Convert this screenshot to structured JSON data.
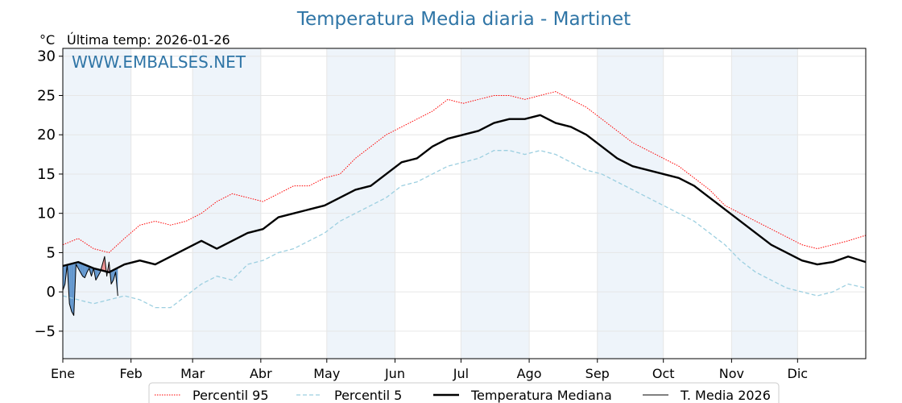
{
  "header": {
    "title": "Temperatura Media diaria - Martinet",
    "unit": "°C",
    "last_temp": "Última temp: 2026-01-26",
    "watermark": "WWW.EMBALSES.NET"
  },
  "chart_data": {
    "type": "line",
    "title": "Temperatura Media diaria - Martinet",
    "ylabel": "°C",
    "ylim": [
      -8.5,
      31
    ],
    "yticks": [
      30,
      25,
      20,
      15,
      10,
      5,
      0,
      -5
    ],
    "ytick_labels": [
      "30",
      "25",
      "20",
      "15",
      "10",
      "5",
      "0",
      "−5"
    ],
    "xlim": [
      1,
      366
    ],
    "months": [
      "Ene",
      "Feb",
      "Mar",
      "Abr",
      "May",
      "Jun",
      "Jul",
      "Ago",
      "Sep",
      "Oct",
      "Nov",
      "Dic"
    ],
    "month_start_day": [
      1,
      32,
      60,
      91,
      121,
      152,
      182,
      213,
      244,
      274,
      305,
      335
    ],
    "shaded_months": [
      "Ene",
      "Mar",
      "May",
      "Jul",
      "Sep",
      "Nov"
    ],
    "grid": true,
    "legend_position": "bottom",
    "colors": {
      "p95": "#ff0000",
      "p5": "#9ccfe0",
      "mediana": "#000000",
      "media2026": "#000000",
      "fill_below": "#4a86c5",
      "fill_above": "#f08080",
      "band": "#eef4fa"
    },
    "series": [
      {
        "name": "Percentil 95",
        "style": "dotted",
        "x": [
          1,
          8,
          15,
          22,
          29,
          36,
          43,
          50,
          57,
          64,
          71,
          78,
          85,
          92,
          99,
          106,
          113,
          120,
          127,
          134,
          141,
          148,
          155,
          162,
          169,
          176,
          183,
          190,
          197,
          204,
          211,
          218,
          225,
          232,
          239,
          246,
          253,
          260,
          267,
          274,
          281,
          288,
          295,
          302,
          309,
          316,
          323,
          330,
          337,
          344,
          351,
          358,
          366
        ],
        "values": [
          6.0,
          6.8,
          5.5,
          5.0,
          6.8,
          8.5,
          9.0,
          8.5,
          9.0,
          10.0,
          11.5,
          12.5,
          12.0,
          11.5,
          12.5,
          13.5,
          13.5,
          14.5,
          15.0,
          17.0,
          18.5,
          20.0,
          21.0,
          22.0,
          23.0,
          24.5,
          24.0,
          24.5,
          25.0,
          25.0,
          24.5,
          25.0,
          25.5,
          24.5,
          23.5,
          22.0,
          20.5,
          19.0,
          18.0,
          17.0,
          16.0,
          14.5,
          13.0,
          11.0,
          10.0,
          9.0,
          8.0,
          7.0,
          6.0,
          5.5,
          6.0,
          6.5,
          7.2
        ]
      },
      {
        "name": "Percentil 5",
        "style": "dashed",
        "x": [
          1,
          8,
          15,
          22,
          29,
          36,
          43,
          50,
          57,
          64,
          71,
          78,
          85,
          92,
          99,
          106,
          113,
          120,
          127,
          134,
          141,
          148,
          155,
          162,
          169,
          176,
          183,
          190,
          197,
          204,
          211,
          218,
          225,
          232,
          239,
          246,
          253,
          260,
          267,
          274,
          281,
          288,
          295,
          302,
          309,
          316,
          323,
          330,
          337,
          344,
          351,
          358,
          366
        ],
        "values": [
          -0.5,
          -1.0,
          -1.5,
          -1.0,
          -0.5,
          -1.0,
          -2.0,
          -2.0,
          -0.5,
          1.0,
          2.0,
          1.5,
          3.5,
          4.0,
          5.0,
          5.5,
          6.5,
          7.5,
          9.0,
          10.0,
          11.0,
          12.0,
          13.5,
          14.0,
          15.0,
          16.0,
          16.5,
          17.0,
          18.0,
          18.0,
          17.5,
          18.0,
          17.5,
          16.5,
          15.5,
          15.0,
          14.0,
          13.0,
          12.0,
          11.0,
          10.0,
          9.0,
          7.5,
          6.0,
          4.0,
          2.5,
          1.5,
          0.5,
          0.0,
          -0.5,
          0.0,
          1.0,
          0.5
        ]
      },
      {
        "name": "Temperatura Mediana",
        "style": "solid-thick",
        "x": [
          1,
          8,
          15,
          22,
          29,
          36,
          43,
          50,
          57,
          64,
          71,
          78,
          85,
          92,
          99,
          106,
          113,
          120,
          127,
          134,
          141,
          148,
          155,
          162,
          169,
          176,
          183,
          190,
          197,
          204,
          211,
          218,
          225,
          232,
          239,
          246,
          253,
          260,
          267,
          274,
          281,
          288,
          295,
          302,
          309,
          316,
          323,
          330,
          337,
          344,
          351,
          358,
          366
        ],
        "values": [
          3.3,
          3.8,
          3.0,
          2.5,
          3.5,
          4.0,
          3.5,
          4.5,
          5.5,
          6.5,
          5.5,
          6.5,
          7.5,
          8.0,
          9.5,
          10.0,
          10.5,
          11.0,
          12.0,
          13.0,
          13.5,
          15.0,
          16.5,
          17.0,
          18.5,
          19.5,
          20.0,
          20.5,
          21.5,
          22.0,
          22.0,
          22.5,
          21.5,
          21.0,
          20.0,
          18.5,
          17.0,
          16.0,
          15.5,
          15.0,
          14.5,
          13.5,
          12.0,
          10.5,
          9.0,
          7.5,
          6.0,
          5.0,
          4.0,
          3.5,
          3.8,
          4.5,
          3.8
        ]
      },
      {
        "name": "T. Media 2026",
        "style": "solid-thin",
        "x": [
          1,
          2,
          3,
          4,
          5,
          6,
          7,
          8,
          9,
          10,
          11,
          12,
          13,
          14,
          15,
          16,
          17,
          18,
          19,
          20,
          21,
          22,
          23,
          24,
          25,
          26
        ],
        "values": [
          0.2,
          1.0,
          3.5,
          -1.5,
          -2.5,
          -3.0,
          3.5,
          3.0,
          2.5,
          2.0,
          1.8,
          2.5,
          3.0,
          2.0,
          3.0,
          1.5,
          2.0,
          2.5,
          3.5,
          4.5,
          2.0,
          3.8,
          1.0,
          1.5,
          2.5,
          -0.5
        ]
      }
    ]
  },
  "legend": [
    {
      "label": "Percentil 95",
      "style": "dotted",
      "color": "#ff0000"
    },
    {
      "label": "Percentil 5",
      "style": "dashed",
      "color": "#9ccfe0"
    },
    {
      "label": "Temperatura Mediana",
      "style": "solid-thick",
      "color": "#000000"
    },
    {
      "label": "T. Media 2026",
      "style": "solid-thin",
      "color": "#000000"
    }
  ]
}
